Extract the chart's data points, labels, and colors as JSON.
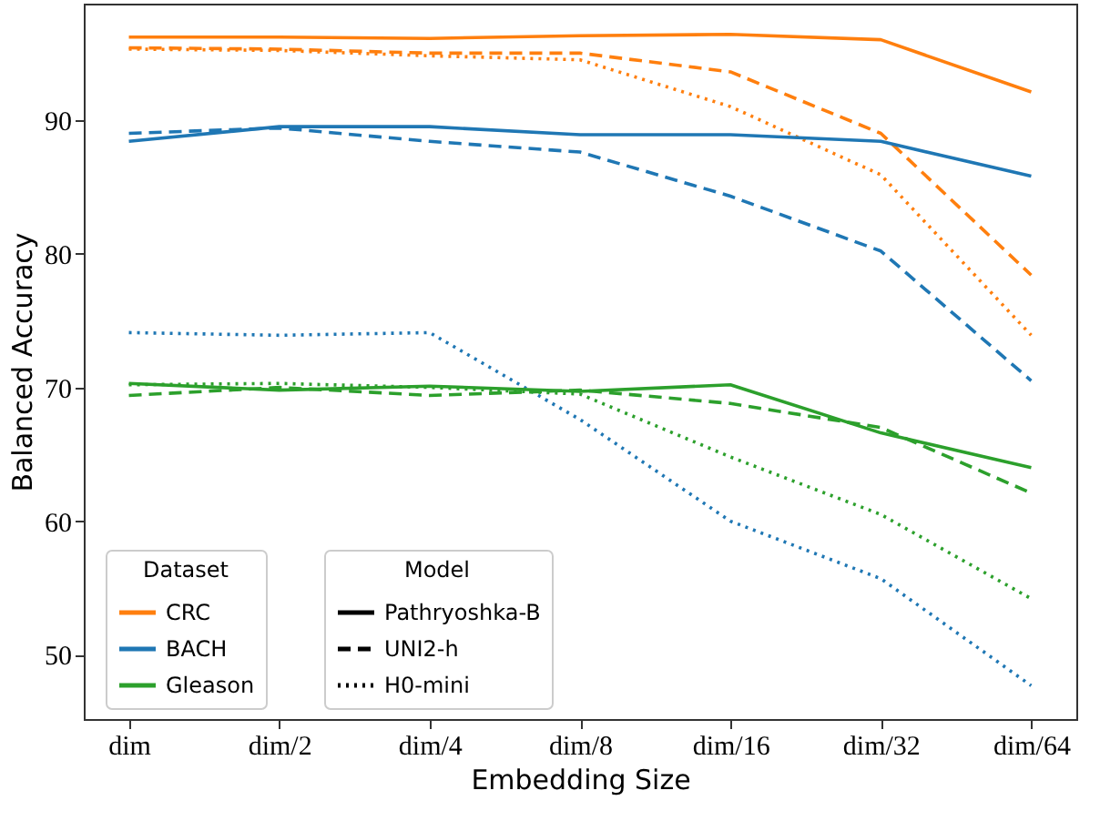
{
  "chart_data": {
    "type": "line",
    "xlabel": "Embedding Size",
    "ylabel": "Balanced Accuracy",
    "categories": [
      "dim",
      "dim/2",
      "dim/4",
      "dim/8",
      "dim/16",
      "dim/32",
      "dim/64"
    ],
    "ylim": [
      45.2,
      98.7
    ],
    "yticks": [
      50,
      60,
      70,
      80,
      90
    ],
    "grid": false,
    "legend": "bottom left",
    "legend_title": [
      "Dataset",
      "Model"
    ],
    "marker": "none",
    "annotations": [
      "Pathryoshka-B",
      "UNI2-h",
      "H0-mini"
    ],
    "series": [
      {
        "name": "CRC",
        "line_style": "solid",
        "color": "#ff7f0e",
        "values": [
          96.2,
          96.2,
          96.1,
          96.3,
          96.4,
          96.0,
          92.1
        ]
      },
      {
        "line_style": "dashed",
        "color": "#ff7f0e",
        "values": [
          95.4,
          95.3,
          95.0,
          95.0,
          93.6,
          89.0,
          78.4
        ]
      },
      {
        "line_style": "dotted",
        "color": "#ff7f0e",
        "values": [
          95.3,
          95.2,
          94.8,
          94.5,
          91.0,
          85.9,
          73.9
        ]
      },
      {
        "name": "BACH",
        "line_style": "solid",
        "color": "#1f77b4",
        "values": [
          88.4,
          89.5,
          89.5,
          88.9,
          88.9,
          88.4,
          85.8
        ]
      },
      {
        "line_style": "dashed",
        "color": "#1f77b4",
        "values": [
          89.0,
          89.4,
          88.4,
          87.6,
          84.3,
          80.2,
          70.5
        ]
      },
      {
        "line_style": "dotted",
        "color": "#1f77b4",
        "values": [
          74.1,
          73.9,
          74.1,
          67.6,
          60.0,
          55.7,
          47.7
        ]
      },
      {
        "name": "Gleason",
        "line_style": "solid",
        "color": "#2ca02c",
        "values": [
          70.3,
          69.8,
          70.1,
          69.7,
          70.2,
          66.6,
          64.0
        ]
      },
      {
        "line_style": "dashed",
        "color": "#2ca02c",
        "values": [
          69.4,
          70.0,
          69.4,
          69.8,
          68.8,
          67.0,
          62.1
        ]
      },
      {
        "line_style": "dotted",
        "color": "#2ca02c",
        "values": [
          70.2,
          70.3,
          70.0,
          69.5,
          64.8,
          60.5,
          54.2
        ]
      }
    ]
  }
}
